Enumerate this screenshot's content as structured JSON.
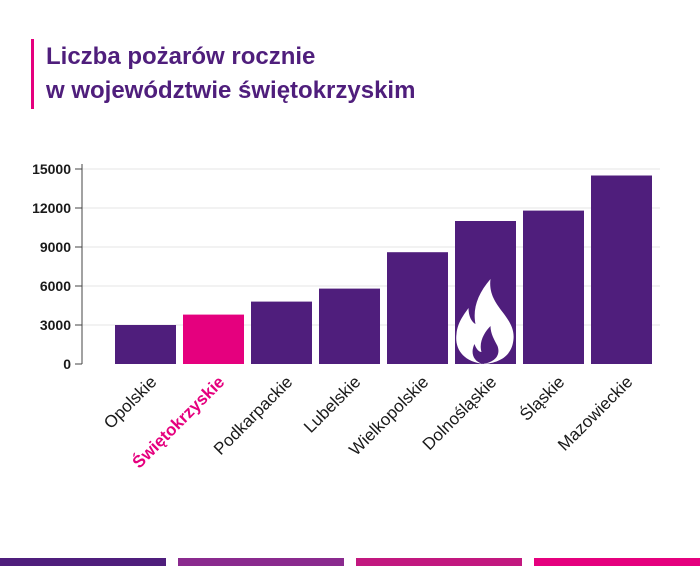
{
  "title_line1": "Liczba pożarów rocznie",
  "title_line2": "w województwie świętokrzyskim",
  "chart_data": {
    "type": "bar",
    "title": "Liczba pożarów rocznie w województwie świętokrzyskim",
    "categories": [
      "Opolskie",
      "Świętokrzyskie",
      "Podkarpackie",
      "Lubelskie",
      "Wielkopolskie",
      "Dolnośląskie",
      "Śląskie",
      "Mazowieckie"
    ],
    "values": [
      3000,
      3800,
      4800,
      5800,
      8600,
      11000,
      11800,
      14500
    ],
    "highlight": "Świętokrzyskie",
    "yticks": [
      0,
      3000,
      6000,
      9000,
      12000,
      15000
    ],
    "ylim": [
      0,
      15000
    ],
    "grid": true,
    "colors": {
      "bar": "#4f1e7c",
      "highlight": "#e5007e",
      "grid": "#e6e6e6",
      "text": "#1a1a1a"
    },
    "decoration_icon": "flame-icon"
  },
  "bottom_strip_colors": [
    "#4f1e7c",
    "#8a2a8e",
    "#c2187f",
    "#e5007e"
  ]
}
